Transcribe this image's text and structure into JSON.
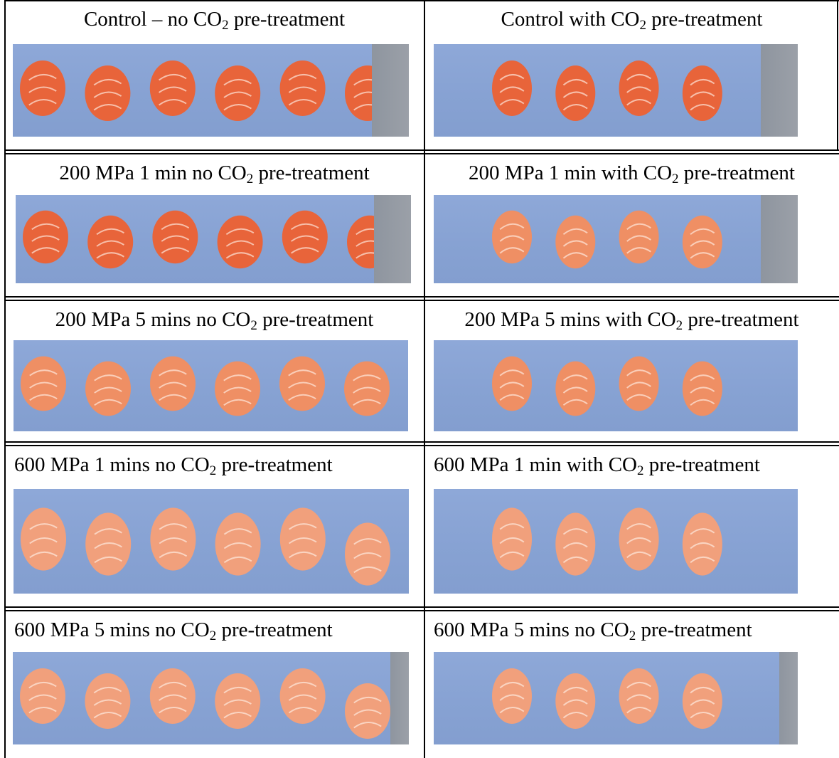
{
  "table": {
    "rows": [
      {
        "left": {
          "before": "Control – no CO",
          "sub": "2",
          "after": " pre-treatment",
          "pieces": 6,
          "tone": "raw"
        },
        "right": {
          "before": "Control with CO",
          "sub": "2",
          "after": " pre-treatment",
          "pieces": 4,
          "tone": "raw"
        }
      },
      {
        "left": {
          "before": "200 MPa 1 min no CO",
          "sub": "2",
          "after": " pre-treatment",
          "pieces": 6,
          "tone": "raw"
        },
        "right": {
          "before": "200 MPa 1 min with CO",
          "sub": "2",
          "after": " pre-treatment",
          "pieces": 4,
          "tone": "pale"
        }
      },
      {
        "left": {
          "before": "200 MPa 5 mins no CO",
          "sub": "2",
          "after": " pre-treatment",
          "pieces": 6,
          "tone": "pale"
        },
        "right": {
          "before": "200 MPa 5 mins with CO",
          "sub": "2",
          "after": " pre-treatment",
          "pieces": 4,
          "tone": "pale"
        }
      },
      {
        "left": {
          "before": "600 MPa 1 mins no CO",
          "sub": "2",
          "after": " pre-treatment",
          "pieces": 6,
          "tone": "cooked"
        },
        "right": {
          "before": "600 MPa 1 min with CO",
          "sub": "2",
          "after": " pre-treatment",
          "pieces": 4,
          "tone": "cooked"
        }
      },
      {
        "left": {
          "before": "600 MPa 5 mins no CO",
          "sub": "2",
          "after": " pre-treatment",
          "pieces": 6,
          "tone": "cooked"
        },
        "right": {
          "before": "600 MPa 5 mins no CO",
          "sub": "2",
          "after": " pre-treatment",
          "pieces": 4,
          "tone": "cooked"
        }
      }
    ]
  },
  "colors": {
    "tray_blue": "#87a2d3",
    "raw_salmon": "#e8643a",
    "pale_salmon": "#ef8f64",
    "cooked_salmon": "#f1a07c",
    "table_rule": "#000000"
  }
}
